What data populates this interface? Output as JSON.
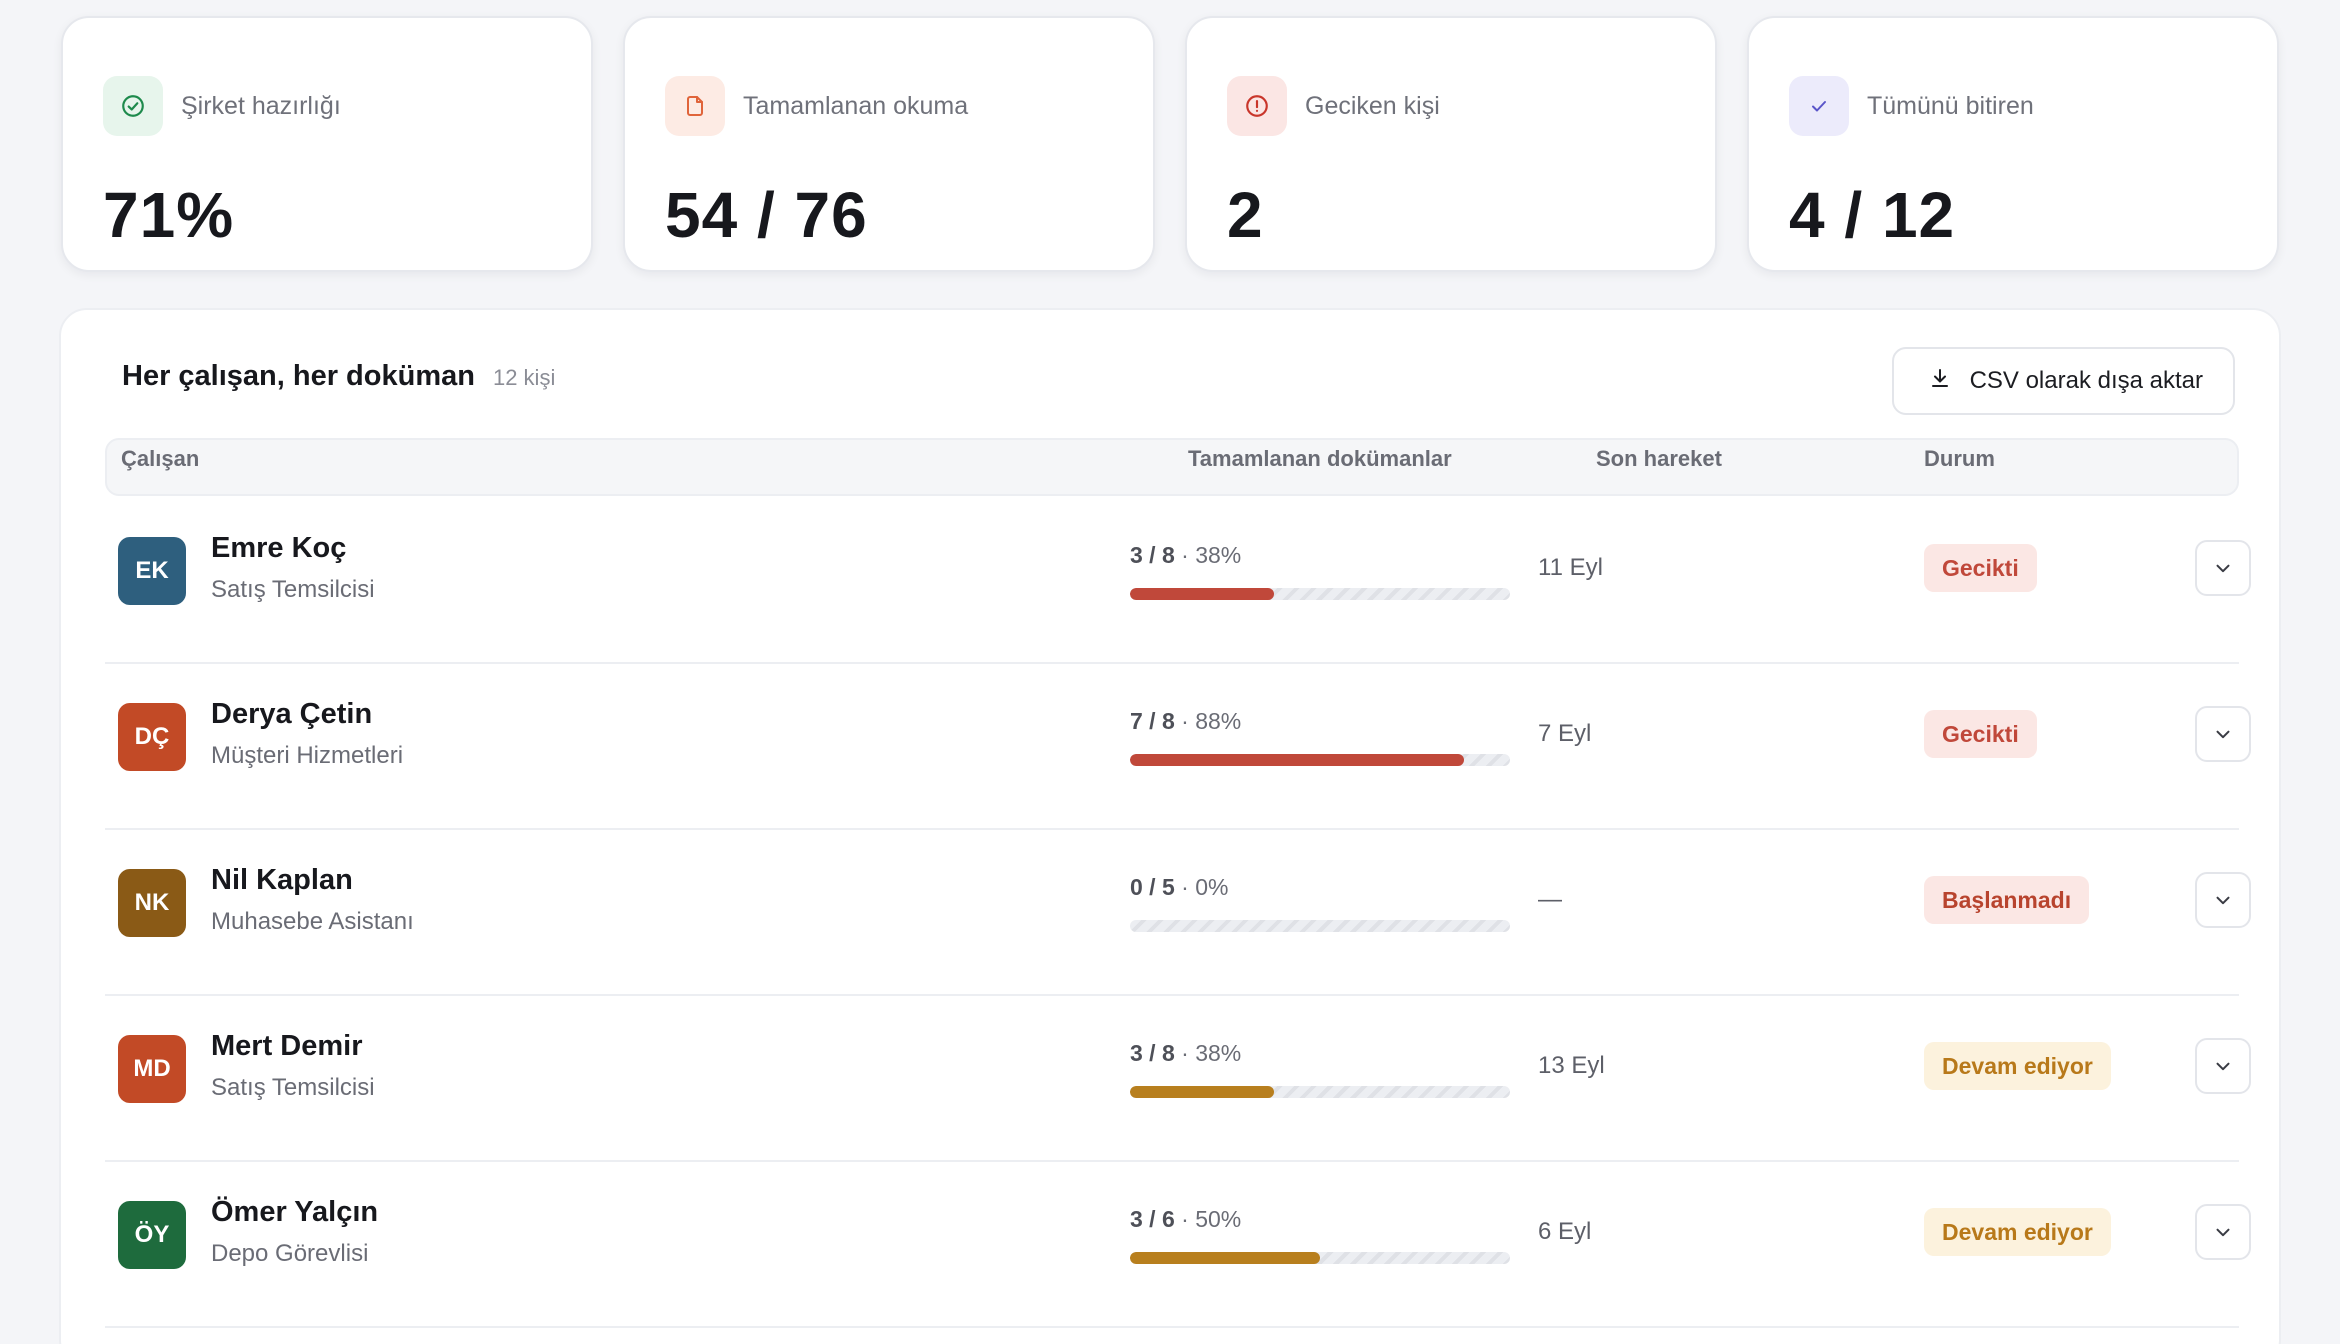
{
  "stats": [
    {
      "label": "Şirket hazırlığı",
      "value": "71%",
      "icon": "check-circle-icon",
      "icon_bg": "#e7f5ec",
      "icon_color": "#1e8a4c"
    },
    {
      "label": "Tamamlanan okuma",
      "value": "54 / 76",
      "icon": "document-icon",
      "icon_bg": "#fdebe4",
      "icon_color": "#e0643a"
    },
    {
      "label": "Geciken kişi",
      "value": "2",
      "icon": "alert-circle-icon",
      "icon_bg": "#fbe6e4",
      "icon_color": "#c9362b"
    },
    {
      "label": "Tümünü bitiren",
      "value": "4 / 12",
      "icon": "check-icon",
      "icon_bg": "#ecebfb",
      "icon_color": "#5a55c9"
    }
  ],
  "panel": {
    "title": "Her çalışan, her doküman",
    "count": "12 kişi",
    "csv_label": "CSV olarak dışa aktar"
  },
  "table": {
    "headers": {
      "employee": "Çalışan",
      "completed": "Tamamlanan dokümanlar",
      "last": "Son hareket",
      "status": "Durum"
    },
    "rows": [
      {
        "initials": "EK",
        "avatar_color": "#2e5f7e",
        "name": "Emre Koç",
        "role": "Satış Temsilcisi",
        "done": "3 / 8",
        "pct": "38%",
        "progress": 0.38,
        "bar_color": "#c0483a",
        "last": "11 Eyl",
        "status": "Gecikti",
        "status_bg": "#fbe7e4",
        "status_color": "#c0483a"
      },
      {
        "initials": "DÇ",
        "avatar_color": "#c24a26",
        "name": "Derya Çetin",
        "role": "Müşteri Hizmetleri",
        "done": "7 / 8",
        "pct": "88%",
        "progress": 0.88,
        "bar_color": "#c0483a",
        "last": "7 Eyl",
        "status": "Gecikti",
        "status_bg": "#fbe7e4",
        "status_color": "#c0483a"
      },
      {
        "initials": "NK",
        "avatar_color": "#8a5a16",
        "name": "Nil Kaplan",
        "role": "Muhasebe Asistanı",
        "done": "0 / 5",
        "pct": "0%",
        "progress": 0,
        "bar_color": "#c0483a",
        "last": "—",
        "status": "Başlanmadı",
        "status_bg": "#fbe7e4",
        "status_color": "#b8442e"
      },
      {
        "initials": "MD",
        "avatar_color": "#c24a26",
        "name": "Mert Demir",
        "role": "Satış Temsilcisi",
        "done": "3 / 8",
        "pct": "38%",
        "progress": 0.38,
        "bar_color": "#b87f1e",
        "last": "13 Eyl",
        "status": "Devam ediyor",
        "status_bg": "#fcf2dd",
        "status_color": "#b8791a"
      },
      {
        "initials": "ÖY",
        "avatar_color": "#1e6b3d",
        "name": "Ömer Yalçın",
        "role": "Depo Görevlisi",
        "done": "3 / 6",
        "pct": "50%",
        "progress": 0.5,
        "bar_color": "#b87f1e",
        "last": "6 Eyl",
        "status": "Devam ediyor",
        "status_bg": "#fcf2dd",
        "status_color": "#b8791a"
      }
    ]
  }
}
